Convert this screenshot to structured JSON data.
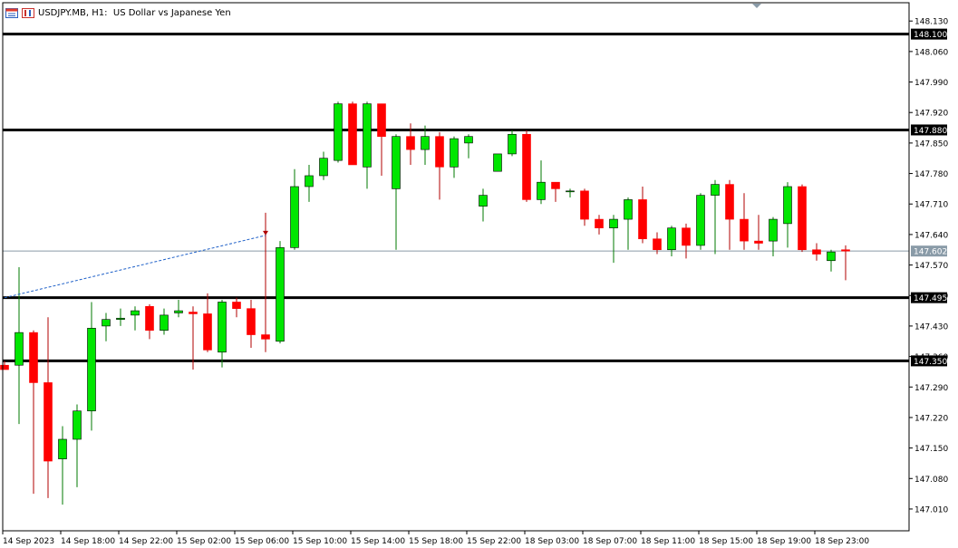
{
  "header": {
    "symbol": "USDJPY.MB",
    "timeframe": "H1:",
    "description": "US Dollar vs Japanese Yen"
  },
  "colors": {
    "bull": "#00e600",
    "bear": "#ff0000",
    "wick_bull": "#007a00",
    "wick_bear": "#b00000",
    "level_line": "#000000",
    "bid_line": "#8a9ba8",
    "trend_line": "#1e60c8"
  },
  "chart_data": {
    "type": "candlestick",
    "ylim": [
      146.96,
      148.172
    ],
    "y_ticks": [
      "148.130",
      "148.060",
      "147.990",
      "147.920",
      "147.850",
      "147.780",
      "147.710",
      "147.640",
      "147.570",
      "147.500",
      "147.430",
      "147.360",
      "147.290",
      "147.220",
      "147.150",
      "147.080",
      "147.010"
    ],
    "x_tick_labels": [
      "14 Sep 2023",
      "14 Sep 18:00",
      "14 Sep 22:00",
      "15 Sep 02:00",
      "15 Sep 06:00",
      "15 Sep 10:00",
      "15 Sep 14:00",
      "15 Sep 18:00",
      "15 Sep 22:00",
      "18 Sep 03:00",
      "18 Sep 07:00",
      "18 Sep 11:00",
      "18 Sep 15:00",
      "18 Sep 19:00",
      "18 Sep 23:00"
    ],
    "x_tick_candle_index": [
      0,
      4,
      8,
      12,
      16,
      20,
      24,
      28,
      32,
      36,
      40,
      44,
      48,
      52,
      56
    ],
    "horizontal_levels": [
      {
        "value": 148.1,
        "label": "148.100"
      },
      {
        "value": 147.88,
        "label": "147.880"
      },
      {
        "value": 147.495,
        "label": "147.495"
      },
      {
        "value": 147.35,
        "label": "147.350"
      }
    ],
    "current_price": {
      "value": 147.602,
      "label": "147.602"
    },
    "trend_line": {
      "from": {
        "candle": 0,
        "price": 147.495
      },
      "to": {
        "candle": 18,
        "price": 147.638
      }
    },
    "arrow_marker": {
      "candle": 18,
      "price": 147.638
    },
    "candles": [
      {
        "o": 147.34,
        "h": 147.35,
        "l": 147.33,
        "c": 147.33
      },
      {
        "o": 147.34,
        "h": 147.565,
        "l": 147.205,
        "c": 147.415
      },
      {
        "o": 147.415,
        "h": 147.42,
        "l": 147.045,
        "c": 147.3
      },
      {
        "o": 147.3,
        "h": 147.45,
        "l": 147.035,
        "c": 147.12
      },
      {
        "o": 147.125,
        "h": 147.2,
        "l": 147.02,
        "c": 147.17
      },
      {
        "o": 147.17,
        "h": 147.25,
        "l": 147.06,
        "c": 147.235
      },
      {
        "o": 147.235,
        "h": 147.485,
        "l": 147.19,
        "c": 147.425
      },
      {
        "o": 147.43,
        "h": 147.46,
        "l": 147.395,
        "c": 147.445
      },
      {
        "o": 147.445,
        "h": 147.47,
        "l": 147.43,
        "c": 147.448
      },
      {
        "o": 147.455,
        "h": 147.475,
        "l": 147.42,
        "c": 147.465
      },
      {
        "o": 147.475,
        "h": 147.48,
        "l": 147.4,
        "c": 147.42
      },
      {
        "o": 147.42,
        "h": 147.47,
        "l": 147.41,
        "c": 147.455
      },
      {
        "o": 147.46,
        "h": 147.49,
        "l": 147.45,
        "c": 147.465
      },
      {
        "o": 147.462,
        "h": 147.475,
        "l": 147.33,
        "c": 147.458
      },
      {
        "o": 147.458,
        "h": 147.505,
        "l": 147.37,
        "c": 147.375
      },
      {
        "o": 147.37,
        "h": 147.49,
        "l": 147.335,
        "c": 147.485
      },
      {
        "o": 147.485,
        "h": 147.495,
        "l": 147.45,
        "c": 147.47
      },
      {
        "o": 147.47,
        "h": 147.49,
        "l": 147.38,
        "c": 147.41
      },
      {
        "o": 147.41,
        "h": 147.69,
        "l": 147.37,
        "c": 147.4
      },
      {
        "o": 147.395,
        "h": 147.625,
        "l": 147.39,
        "c": 147.61
      },
      {
        "o": 147.61,
        "h": 147.79,
        "l": 147.605,
        "c": 147.75
      },
      {
        "o": 147.75,
        "h": 147.8,
        "l": 147.715,
        "c": 147.775
      },
      {
        "o": 147.775,
        "h": 147.83,
        "l": 147.765,
        "c": 147.815
      },
      {
        "o": 147.81,
        "h": 147.945,
        "l": 147.805,
        "c": 147.94
      },
      {
        "o": 147.94,
        "h": 147.945,
        "l": 147.8,
        "c": 147.8
      },
      {
        "o": 147.795,
        "h": 147.945,
        "l": 147.745,
        "c": 147.94
      },
      {
        "o": 147.94,
        "h": 147.94,
        "l": 147.775,
        "c": 147.865
      },
      {
        "o": 147.745,
        "h": 147.87,
        "l": 147.605,
        "c": 147.865
      },
      {
        "o": 147.865,
        "h": 147.895,
        "l": 147.8,
        "c": 147.835
      },
      {
        "o": 147.835,
        "h": 147.89,
        "l": 147.8,
        "c": 147.865
      },
      {
        "o": 147.865,
        "h": 147.875,
        "l": 147.72,
        "c": 147.795
      },
      {
        "o": 147.795,
        "h": 147.865,
        "l": 147.77,
        "c": 147.86
      },
      {
        "o": 147.85,
        "h": 147.87,
        "l": 147.815,
        "c": 147.865
      },
      {
        "o": 147.705,
        "h": 147.745,
        "l": 147.67,
        "c": 147.73
      },
      {
        "o": 147.785,
        "h": 147.82,
        "l": 147.785,
        "c": 147.825
      },
      {
        "o": 147.825,
        "h": 147.88,
        "l": 147.82,
        "c": 147.87
      },
      {
        "o": 147.87,
        "h": 147.88,
        "l": 147.715,
        "c": 147.72
      },
      {
        "o": 147.72,
        "h": 147.81,
        "l": 147.71,
        "c": 147.76
      },
      {
        "o": 147.76,
        "h": 147.76,
        "l": 147.715,
        "c": 147.745
      },
      {
        "o": 147.74,
        "h": 147.745,
        "l": 147.725,
        "c": 147.74
      },
      {
        "o": 147.74,
        "h": 147.745,
        "l": 147.66,
        "c": 147.675
      },
      {
        "o": 147.675,
        "h": 147.685,
        "l": 147.64,
        "c": 147.655
      },
      {
        "o": 147.655,
        "h": 147.685,
        "l": 147.575,
        "c": 147.675
      },
      {
        "o": 147.675,
        "h": 147.725,
        "l": 147.605,
        "c": 147.72
      },
      {
        "o": 147.72,
        "h": 147.75,
        "l": 147.62,
        "c": 147.63
      },
      {
        "o": 147.63,
        "h": 147.645,
        "l": 147.595,
        "c": 147.605
      },
      {
        "o": 147.605,
        "h": 147.66,
        "l": 147.59,
        "c": 147.655
      },
      {
        "o": 147.655,
        "h": 147.665,
        "l": 147.585,
        "c": 147.615
      },
      {
        "o": 147.615,
        "h": 147.735,
        "l": 147.605,
        "c": 147.73
      },
      {
        "o": 147.73,
        "h": 147.765,
        "l": 147.595,
        "c": 147.755
      },
      {
        "o": 147.755,
        "h": 147.765,
        "l": 147.605,
        "c": 147.675
      },
      {
        "o": 147.675,
        "h": 147.735,
        "l": 147.605,
        "c": 147.625
      },
      {
        "o": 147.625,
        "h": 147.685,
        "l": 147.605,
        "c": 147.62
      },
      {
        "o": 147.625,
        "h": 147.68,
        "l": 147.59,
        "c": 147.675
      },
      {
        "o": 147.665,
        "h": 147.76,
        "l": 147.61,
        "c": 147.75
      },
      {
        "o": 147.75,
        "h": 147.755,
        "l": 147.6,
        "c": 147.605
      },
      {
        "o": 147.605,
        "h": 147.62,
        "l": 147.58,
        "c": 147.595
      },
      {
        "o": 147.58,
        "h": 147.605,
        "l": 147.555,
        "c": 147.6
      },
      {
        "o": 147.605,
        "h": 147.615,
        "l": 147.535,
        "c": 147.602
      }
    ]
  }
}
